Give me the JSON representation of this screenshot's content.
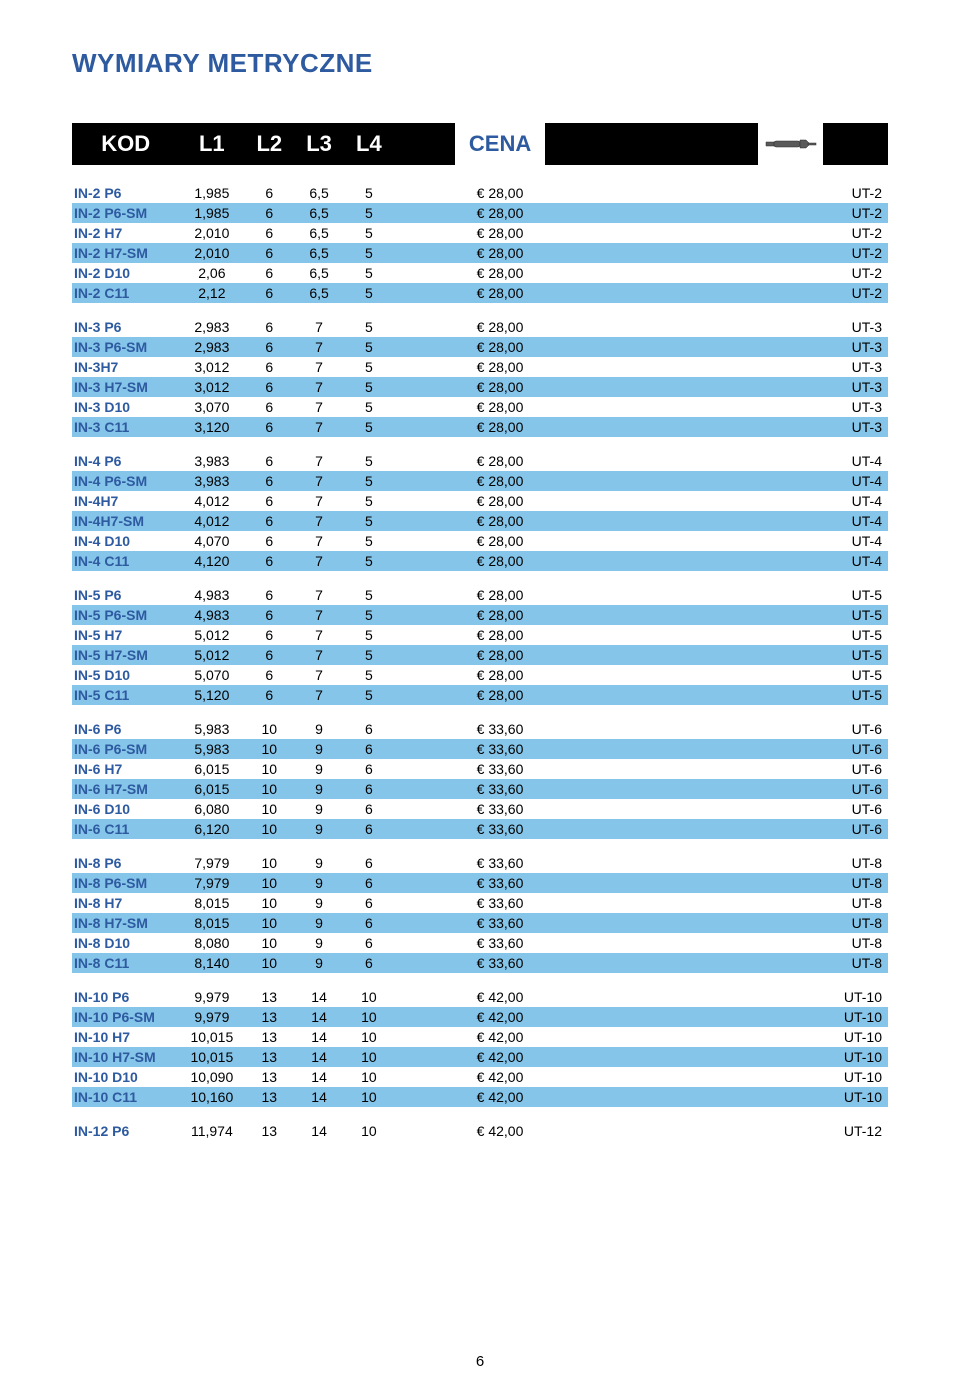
{
  "title": "WYMIARY METRYCZNE",
  "page_number": "6",
  "colors": {
    "brand_blue": "#2e5aa0",
    "stripe": "#85c5ea",
    "header_bg": "#000000",
    "header_fg": "#ffffff",
    "bg": "#ffffff"
  },
  "headers": {
    "kod": "KOD",
    "l1": "L1",
    "l2": "L2",
    "l3": "L3",
    "l4": "L4",
    "cena": "CENA"
  },
  "groups": [
    {
      "rows": [
        {
          "kod": "IN-2 P6",
          "l1": "1,985",
          "l2": "6",
          "l3": "6,5",
          "l4": "5",
          "cena": "€ 28,00",
          "ut": "UT-2"
        },
        {
          "kod": "IN-2 P6-SM",
          "l1": "1,985",
          "l2": "6",
          "l3": "6,5",
          "l4": "5",
          "cena": "€ 28,00",
          "ut": "UT-2"
        },
        {
          "kod": "IN-2 H7",
          "l1": "2,010",
          "l2": "6",
          "l3": "6,5",
          "l4": "5",
          "cena": "€ 28,00",
          "ut": "UT-2"
        },
        {
          "kod": "IN-2 H7-SM",
          "l1": "2,010",
          "l2": "6",
          "l3": "6,5",
          "l4": "5",
          "cena": "€ 28,00",
          "ut": "UT-2"
        },
        {
          "kod": "IN-2 D10",
          "l1": "2,06",
          "l2": "6",
          "l3": "6,5",
          "l4": "5",
          "cena": "€ 28,00",
          "ut": "UT-2"
        },
        {
          "kod": "IN-2 C11",
          "l1": "2,12",
          "l2": "6",
          "l3": "6,5",
          "l4": "5",
          "cena": "€ 28,00",
          "ut": "UT-2"
        }
      ]
    },
    {
      "rows": [
        {
          "kod": "IN-3 P6",
          "l1": "2,983",
          "l2": "6",
          "l3": "7",
          "l4": "5",
          "cena": "€ 28,00",
          "ut": "UT-3"
        },
        {
          "kod": "IN-3 P6-SM",
          "l1": "2,983",
          "l2": "6",
          "l3": "7",
          "l4": "5",
          "cena": "€ 28,00",
          "ut": "UT-3"
        },
        {
          "kod": "IN-3H7",
          "l1": "3,012",
          "l2": "6",
          "l3": "7",
          "l4": "5",
          "cena": "€ 28,00",
          "ut": "UT-3"
        },
        {
          "kod": "IN-3 H7-SM",
          "l1": "3,012",
          "l2": "6",
          "l3": "7",
          "l4": "5",
          "cena": "€ 28,00",
          "ut": "UT-3"
        },
        {
          "kod": "IN-3 D10",
          "l1": "3,070",
          "l2": "6",
          "l3": "7",
          "l4": "5",
          "cena": "€ 28,00",
          "ut": "UT-3"
        },
        {
          "kod": "IN-3 C11",
          "l1": "3,120",
          "l2": "6",
          "l3": "7",
          "l4": "5",
          "cena": "€ 28,00",
          "ut": "UT-3"
        }
      ]
    },
    {
      "rows": [
        {
          "kod": "IN-4 P6",
          "l1": "3,983",
          "l2": "6",
          "l3": "7",
          "l4": "5",
          "cena": "€ 28,00",
          "ut": "UT-4"
        },
        {
          "kod": "IN-4 P6-SM",
          "l1": "3,983",
          "l2": "6",
          "l3": "7",
          "l4": "5",
          "cena": "€ 28,00",
          "ut": "UT-4"
        },
        {
          "kod": "IN-4H7",
          "l1": "4,012",
          "l2": "6",
          "l3": "7",
          "l4": "5",
          "cena": "€ 28,00",
          "ut": "UT-4"
        },
        {
          "kod": "IN-4H7-SM",
          "l1": "4,012",
          "l2": "6",
          "l3": "7",
          "l4": "5",
          "cena": "€ 28,00",
          "ut": "UT-4"
        },
        {
          "kod": "IN-4 D10",
          "l1": "4,070",
          "l2": "6",
          "l3": "7",
          "l4": "5",
          "cena": "€ 28,00",
          "ut": "UT-4"
        },
        {
          "kod": "IN-4 C11",
          "l1": "4,120",
          "l2": "6",
          "l3": "7",
          "l4": "5",
          "cena": "€ 28,00",
          "ut": "UT-4"
        }
      ]
    },
    {
      "rows": [
        {
          "kod": "IN-5 P6",
          "l1": "4,983",
          "l2": "6",
          "l3": "7",
          "l4": "5",
          "cena": "€ 28,00",
          "ut": "UT-5"
        },
        {
          "kod": "IN-5 P6-SM",
          "l1": "4,983",
          "l2": "6",
          "l3": "7",
          "l4": "5",
          "cena": "€ 28,00",
          "ut": "UT-5"
        },
        {
          "kod": "IN-5 H7",
          "l1": "5,012",
          "l2": "6",
          "l3": "7",
          "l4": "5",
          "cena": "€ 28,00",
          "ut": "UT-5"
        },
        {
          "kod": "IN-5 H7-SM",
          "l1": "5,012",
          "l2": "6",
          "l3": "7",
          "l4": "5",
          "cena": "€ 28,00",
          "ut": "UT-5"
        },
        {
          "kod": "IN-5 D10",
          "l1": "5,070",
          "l2": "6",
          "l3": "7",
          "l4": "5",
          "cena": "€ 28,00",
          "ut": "UT-5"
        },
        {
          "kod": "IN-5 C11",
          "l1": "5,120",
          "l2": "6",
          "l3": "7",
          "l4": "5",
          "cena": "€ 28,00",
          "ut": "UT-5"
        }
      ]
    },
    {
      "rows": [
        {
          "kod": "IN-6 P6",
          "l1": "5,983",
          "l2": "10",
          "l3": "9",
          "l4": "6",
          "cena": "€ 33,60",
          "ut": "UT-6"
        },
        {
          "kod": "IN-6 P6-SM",
          "l1": "5,983",
          "l2": "10",
          "l3": "9",
          "l4": "6",
          "cena": "€ 33,60",
          "ut": "UT-6"
        },
        {
          "kod": "IN-6 H7",
          "l1": "6,015",
          "l2": "10",
          "l3": "9",
          "l4": "6",
          "cena": "€ 33,60",
          "ut": "UT-6"
        },
        {
          "kod": "IN-6 H7-SM",
          "l1": "6,015",
          "l2": "10",
          "l3": "9",
          "l4": "6",
          "cena": "€ 33,60",
          "ut": "UT-6"
        },
        {
          "kod": "IN-6 D10",
          "l1": "6,080",
          "l2": "10",
          "l3": "9",
          "l4": "6",
          "cena": "€ 33,60",
          "ut": "UT-6"
        },
        {
          "kod": "IN-6 C11",
          "l1": "6,120",
          "l2": "10",
          "l3": "9",
          "l4": "6",
          "cena": "€ 33,60",
          "ut": "UT-6"
        }
      ]
    },
    {
      "rows": [
        {
          "kod": "IN-8 P6",
          "l1": "7,979",
          "l2": "10",
          "l3": "9",
          "l4": "6",
          "cena": "€ 33,60",
          "ut": "UT-8"
        },
        {
          "kod": "IN-8 P6-SM",
          "l1": "7,979",
          "l2": "10",
          "l3": "9",
          "l4": "6",
          "cena": "€ 33,60",
          "ut": "UT-8"
        },
        {
          "kod": "IN-8 H7",
          "l1": "8,015",
          "l2": "10",
          "l3": "9",
          "l4": "6",
          "cena": "€ 33,60",
          "ut": "UT-8"
        },
        {
          "kod": "IN-8 H7-SM",
          "l1": "8,015",
          "l2": "10",
          "l3": "9",
          "l4": "6",
          "cena": "€ 33,60",
          "ut": "UT-8"
        },
        {
          "kod": "IN-8 D10",
          "l1": "8,080",
          "l2": "10",
          "l3": "9",
          "l4": "6",
          "cena": "€ 33,60",
          "ut": "UT-8"
        },
        {
          "kod": "IN-8 C11",
          "l1": "8,140",
          "l2": "10",
          "l3": "9",
          "l4": "6",
          "cena": "€ 33,60",
          "ut": "UT-8"
        }
      ]
    },
    {
      "rows": [
        {
          "kod": "IN-10 P6",
          "l1": "9,979",
          "l2": "13",
          "l3": "14",
          "l4": "10",
          "cena": "€ 42,00",
          "ut": "UT-10"
        },
        {
          "kod": "IN-10 P6-SM",
          "l1": "9,979",
          "l2": "13",
          "l3": "14",
          "l4": "10",
          "cena": "€ 42,00",
          "ut": "UT-10"
        },
        {
          "kod": "IN-10 H7",
          "l1": "10,015",
          "l2": "13",
          "l3": "14",
          "l4": "10",
          "cena": "€ 42,00",
          "ut": "UT-10"
        },
        {
          "kod": "IN-10 H7-SM",
          "l1": "10,015",
          "l2": "13",
          "l3": "14",
          "l4": "10",
          "cena": "€ 42,00",
          "ut": "UT-10"
        },
        {
          "kod": "IN-10 D10",
          "l1": "10,090",
          "l2": "13",
          "l3": "14",
          "l4": "10",
          "cena": "€ 42,00",
          "ut": "UT-10"
        },
        {
          "kod": "IN-10 C11",
          "l1": "10,160",
          "l2": "13",
          "l3": "14",
          "l4": "10",
          "cena": "€ 42,00",
          "ut": "UT-10"
        }
      ]
    },
    {
      "rows": [
        {
          "kod": "IN-12 P6",
          "l1": "11,974",
          "l2": "13",
          "l3": "14",
          "l4": "10",
          "cena": "€ 42,00",
          "ut": "UT-12"
        }
      ]
    }
  ]
}
